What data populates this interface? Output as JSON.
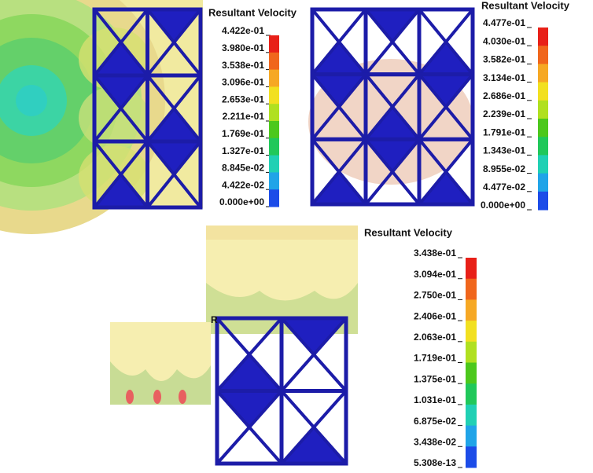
{
  "panels": [
    {
      "legend": {
        "title": "Resultant Velocity",
        "labels": [
          "4.422e-01",
          "3.980e-01",
          "3.538e-01",
          "3.096e-01",
          "2.653e-01",
          "2.211e-01",
          "1.769e-01",
          "1.327e-01",
          "8.845e-02",
          "4.422e-02",
          "0.000e+00"
        ]
      }
    },
    {
      "legend": {
        "title": "Resultant Velocity",
        "labels": [
          "4.477e-01",
          "4.030e-01",
          "3.582e-01",
          "3.134e-01",
          "2.686e-01",
          "2.239e-01",
          "1.791e-01",
          "1.343e-01",
          "8.955e-02",
          "4.477e-02",
          "0.000e+00"
        ]
      }
    },
    {
      "legend": {
        "title": "Resultant Velocity",
        "labels": [
          "3.438e-01",
          "3.094e-01",
          "2.750e-01",
          "2.406e-01",
          "2.063e-01",
          "1.719e-01",
          "1.375e-01",
          "1.031e-01",
          "6.875e-02",
          "3.438e-02",
          "5.308e-13"
        ]
      },
      "marker": "R"
    }
  ],
  "colorscale": [
    "#e82018",
    "#f0661c",
    "#f6a824",
    "#f2e020",
    "#b0e020",
    "#4cc81c",
    "#20c85a",
    "#20d0b4",
    "#20a4e8",
    "#1c4ce8"
  ]
}
